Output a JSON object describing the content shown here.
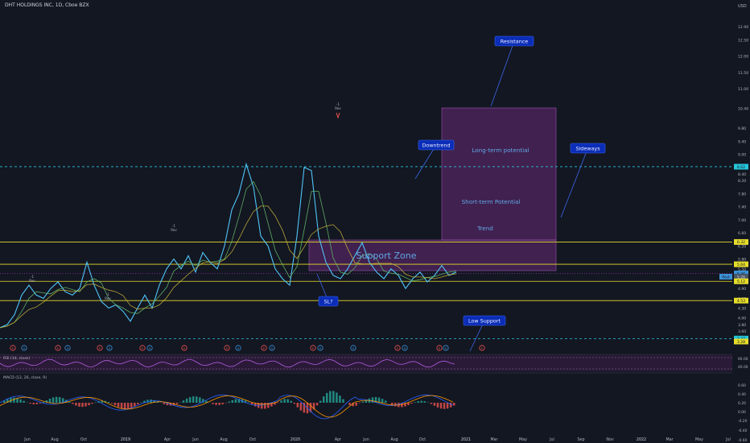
{
  "header": {
    "symbol_title": "DHT HOLDINGS INC, 1D, Cboe BZX"
  },
  "price_axis": {
    "currency": "USD",
    "ticks": [
      "12.90",
      "12.50",
      "12.00",
      "11.50",
      "11.00",
      "10.40",
      "9.80",
      "9.40",
      "9.00",
      "8.40",
      "8.20",
      "7.80",
      "7.40",
      "7.00",
      "6.60",
      "6.20",
      "5.80",
      "5.50",
      "5.20",
      "4.90",
      "4.60",
      "4.30",
      "4.00",
      "3.80",
      "3.60"
    ],
    "ticks_y": [
      12.9,
      12.5,
      12.0,
      11.5,
      11.0,
      10.4,
      9.8,
      9.4,
      9.0,
      8.4,
      8.2,
      7.8,
      7.4,
      7.0,
      6.6,
      6.2,
      5.8,
      5.5,
      5.2,
      4.9,
      4.6,
      4.3,
      4.0,
      3.8,
      3.6
    ],
    "badges": [
      {
        "value": "8.62",
        "y": 8.62,
        "color": "#26c6da",
        "text_color": "#131722"
      },
      {
        "value": "6.32",
        "y": 6.32,
        "color": "#e6dd2b",
        "text_color": "#131722"
      },
      {
        "value": "5.64",
        "y": 5.64,
        "color": "#e6dd2b",
        "text_color": "#131722"
      },
      {
        "value": "5.36",
        "y": 5.36,
        "color": "#3b91d6",
        "text_color": "#131722"
      },
      {
        "value": "5.26",
        "y": 5.26,
        "color": "#4a5566",
        "text_color": "#d1d4dc"
      },
      {
        "value": "5.12",
        "y": 5.12,
        "color": "#e6dd2b",
        "text_color": "#131722"
      },
      {
        "value": "4.53",
        "y": 4.53,
        "color": "#e6dd2b",
        "text_color": "#131722"
      },
      {
        "value": "3.37",
        "y": 3.37,
        "color": "#26c6da",
        "text_color": "#131722"
      },
      {
        "value": "3.28",
        "y": 3.28,
        "color": "#e6dd2b",
        "text_color": "#131722"
      }
    ],
    "post_label": "Post"
  },
  "time_axis": {
    "labels": [
      "Jun",
      "Aug",
      "Oct",
      "2019",
      "Apr",
      "Jun",
      "Aug",
      "Oct",
      "2020",
      "Apr",
      "Jun",
      "Aug",
      "Oct",
      "2021",
      "Mar",
      "May",
      "Jul",
      "Sep",
      "Nov",
      "2022",
      "Mar",
      "May",
      "Jul"
    ]
  },
  "rsi_panel": {
    "title": "RSI (14, close)",
    "ticks": [
      "60.00",
      "40.00"
    ]
  },
  "macd_panel": {
    "title": "MACD (12, 26, close, 9)",
    "ticks": [
      "0.60",
      "0.40",
      "0.20",
      "0.00",
      "-0.20",
      "-0.40",
      "-0.60"
    ]
  },
  "annotations": {
    "resistance": "Resistance",
    "downtrend": "Downtrend",
    "sideways": "Sideways",
    "low_support": "Low Support",
    "sl": "SL?",
    "long_term": "Long-term potential",
    "short_term": "Short-term Potential",
    "trend": "Trend",
    "support_zone": "Support Zone"
  },
  "signals": [
    {
      "lines": [
        "-1",
        "Rev"
      ]
    },
    {
      "lines": [
        "-1",
        "Rev"
      ]
    },
    {
      "lines": [
        "-1",
        "Rev"
      ]
    },
    {
      "lines": [
        "-1",
        "Rev"
      ]
    },
    {
      "lines": [
        "-1",
        "Rev"
      ]
    }
  ],
  "colors": {
    "background": "#131722",
    "horizontal_yellow": "#e6dd2b",
    "horizontal_cyan": "#26c6da",
    "zone_fill": "#7b2f8a",
    "callout": "#0b2db8",
    "price_line": "#4fc3f7",
    "ma_yellow": "#c9b53a",
    "ma_green": "#66bb6a"
  },
  "chart_data": {
    "type": "line",
    "title": "DHT HOLDINGS INC, 1D, Cboe BZX",
    "ylim": [
      3.3,
      13.2
    ],
    "horizontal_levels": [
      8.62,
      6.32,
      5.64,
      5.36,
      5.12,
      4.53,
      3.37
    ],
    "price_series": [
      3.7,
      3.8,
      4.1,
      4.7,
      5.0,
      4.7,
      4.6,
      4.9,
      5.1,
      4.8,
      4.7,
      4.9,
      5.7,
      5.0,
      4.5,
      4.3,
      4.4,
      4.2,
      3.9,
      4.3,
      4.7,
      4.3,
      5.0,
      5.5,
      5.8,
      5.5,
      5.9,
      5.4,
      6.0,
      5.7,
      5.5,
      6.2,
      7.3,
      7.8,
      8.7,
      8.0,
      6.5,
      6.2,
      5.5,
      5.2,
      5.0,
      6.5,
      8.6,
      8.5,
      6.5,
      5.7,
      5.3,
      5.2,
      5.5,
      5.9,
      6.3,
      5.7,
      5.4,
      5.2,
      5.5,
      5.3,
      4.9,
      5.2,
      5.4,
      5.1,
      5.3,
      5.6,
      5.3,
      5.4
    ],
    "rsi_band": [
      30,
      70
    ]
  }
}
